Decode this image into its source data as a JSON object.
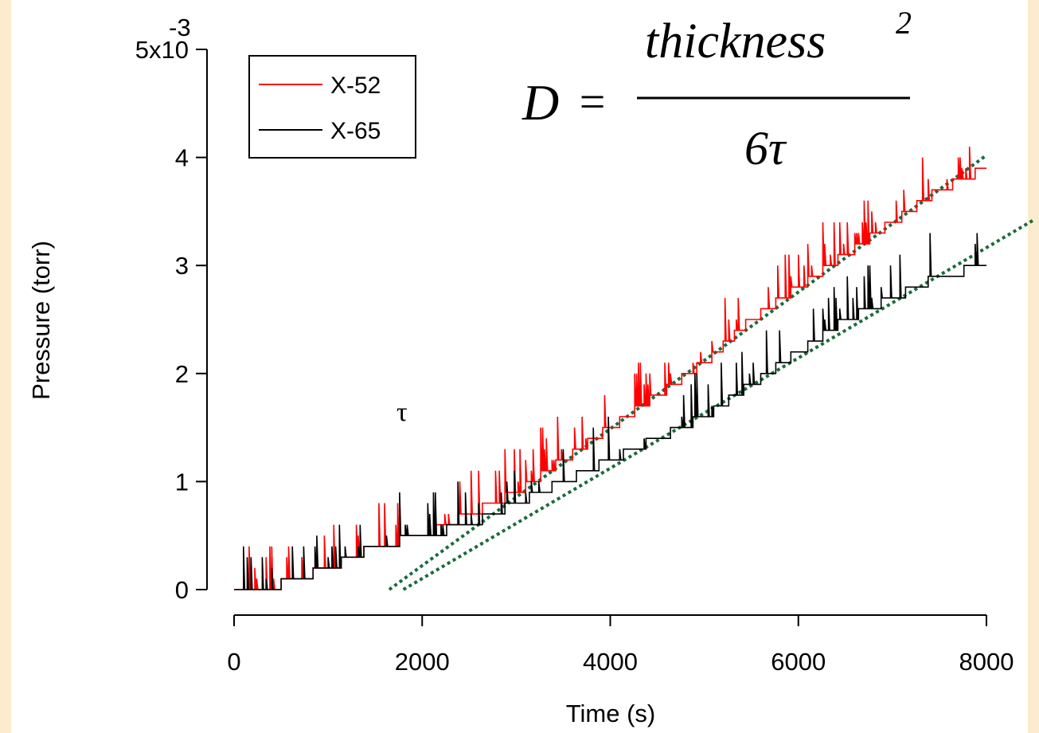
{
  "chart_data": {
    "type": "line",
    "title": "",
    "xlabel": "Time (s)",
    "ylabel": "Pressure (torr)",
    "xlim": [
      0,
      8000
    ],
    "ylim": [
      0,
      0.005
    ],
    "x_ticks": [
      0,
      2000,
      4000,
      6000,
      8000
    ],
    "x_tick_labels": [
      "0",
      "2000",
      "4000",
      "6000",
      "8000"
    ],
    "y_ticks": [
      0,
      0.001,
      0.002,
      0.003,
      0.004,
      0.005
    ],
    "y_tick_labels": [
      "0",
      "1",
      "2",
      "3",
      "4",
      "5x10"
    ],
    "y_tick_exponent": "-3",
    "grid": false,
    "legend_position": "top-left",
    "series": [
      {
        "name": "X-52",
        "color": "#ff0000",
        "x": [
          0,
          500,
          1000,
          1500,
          2000,
          2500,
          3000,
          3500,
          4000,
          4500,
          5000,
          5500,
          6000,
          6500,
          7000,
          7500,
          8000
        ],
        "y": [
          0,
          5e-05,
          0.0002,
          0.0004,
          0.0005,
          0.0007,
          0.0009,
          0.0012,
          0.0015,
          0.0018,
          0.0021,
          0.0025,
          0.0028,
          0.0031,
          0.0034,
          0.0037,
          0.0039
        ]
      },
      {
        "name": "X-65",
        "color": "#000000",
        "x": [
          0,
          500,
          1000,
          1500,
          2000,
          2500,
          3000,
          3500,
          4000,
          4500,
          5000,
          5500,
          6000,
          6500,
          7000,
          7500,
          8000
        ],
        "y": [
          0,
          5e-05,
          0.0002,
          0.0004,
          0.0005,
          0.0006,
          0.0008,
          0.001,
          0.0012,
          0.0014,
          0.0016,
          0.0019,
          0.0022,
          0.0025,
          0.0027,
          0.0029,
          0.003
        ]
      }
    ],
    "fit_lines": [
      {
        "color": "#1a6b3c",
        "x": [
          1650,
          8000
        ],
        "y": [
          0,
          0.00402
        ]
      },
      {
        "color": "#1a6b3c",
        "x": [
          1800,
          8500
        ],
        "y": [
          0,
          0.00342
        ]
      }
    ],
    "annotations": {
      "tau_symbol": "τ",
      "equation": {
        "lhs": "D",
        "equals": "=",
        "numerator": "thickness",
        "numerator_exponent": "2",
        "denominator": "6τ"
      }
    }
  }
}
